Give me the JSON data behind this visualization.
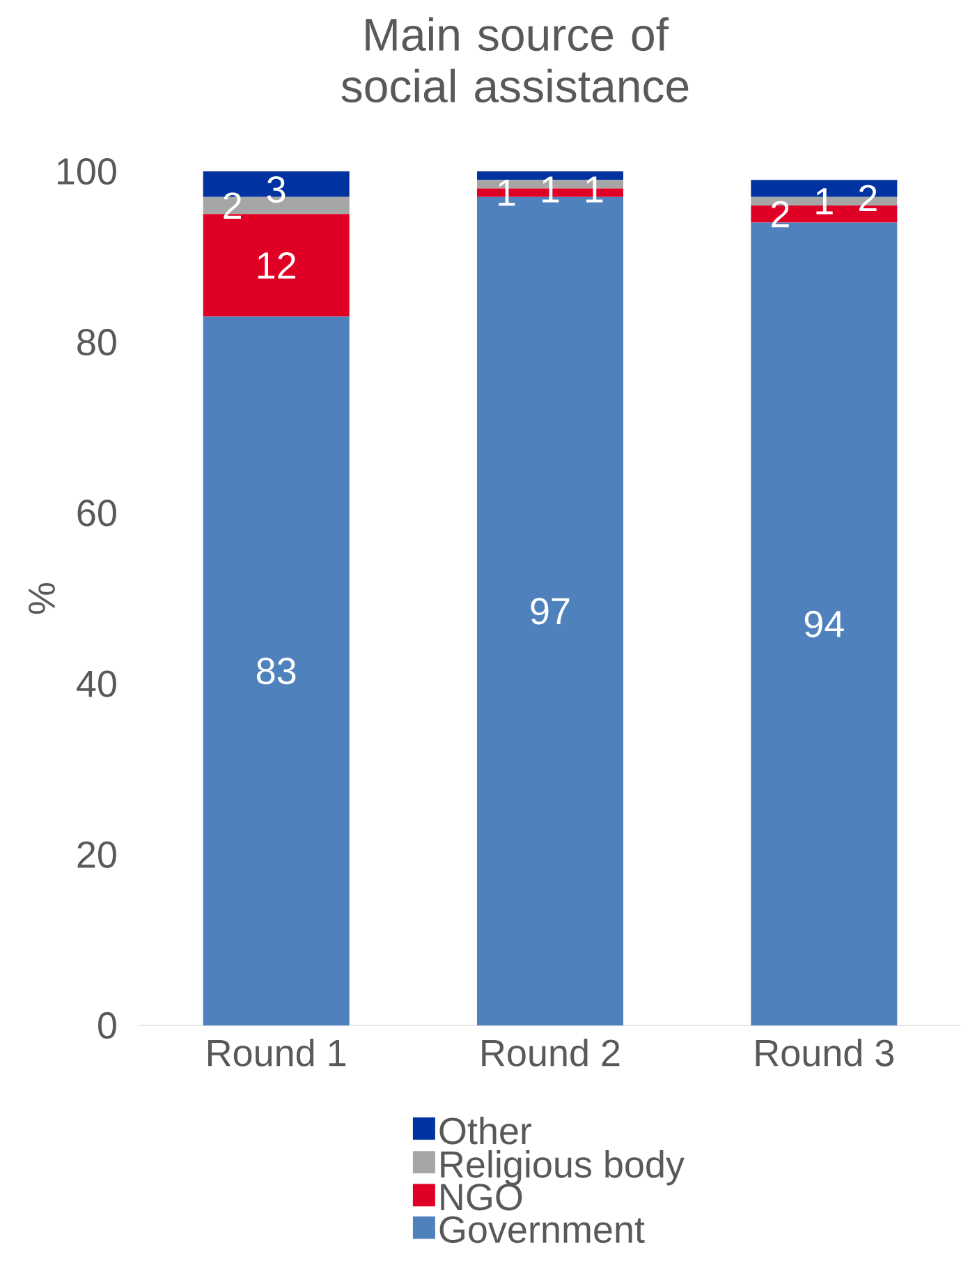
{
  "chart_data": {
    "type": "bar",
    "stacked": true,
    "title": "Main source of social assistance",
    "ylabel": "%",
    "categories": [
      "Round 1",
      "Round 2",
      "Round 3"
    ],
    "series": [
      {
        "name": "Government",
        "color": "#4f81bd",
        "values": [
          83,
          97,
          94
        ]
      },
      {
        "name": "NGO",
        "color": "#e00025",
        "values": [
          12,
          1,
          2
        ]
      },
      {
        "name": "Religious body",
        "color": "#a6a6a6",
        "values": [
          2,
          1,
          1
        ]
      },
      {
        "name": "Other",
        "color": "#0033a0",
        "values": [
          3,
          1,
          2
        ]
      }
    ],
    "ylim": [
      0,
      100
    ],
    "yticks": [
      0,
      20,
      40,
      60,
      80,
      100
    ],
    "data_labels": true,
    "legend": "bottom",
    "grid": false
  }
}
